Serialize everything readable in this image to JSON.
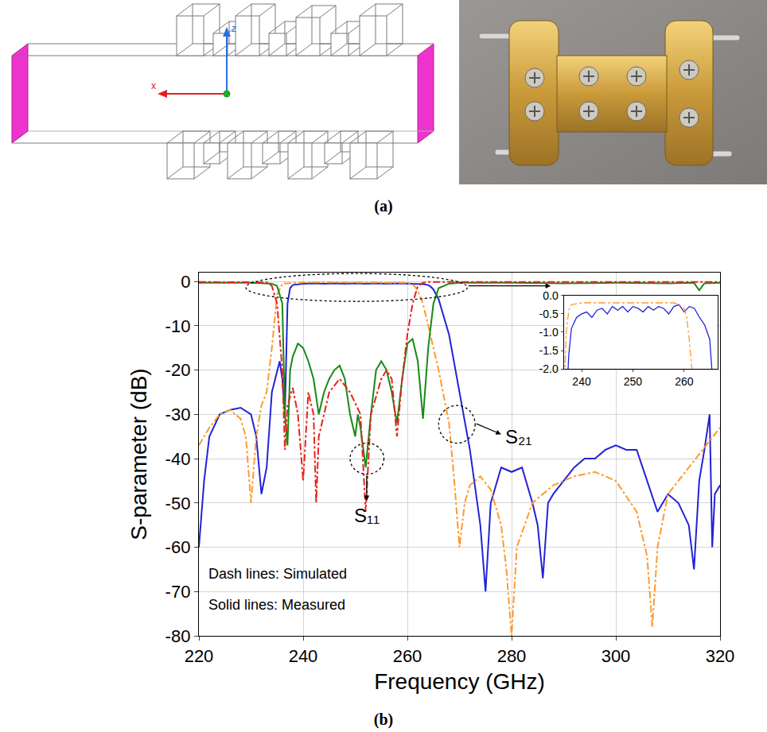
{
  "panels": {
    "a": {
      "label": "(a)",
      "axis_labels": [
        "x",
        "z"
      ]
    },
    "b": {
      "label": "(b)"
    }
  },
  "chart_data": {
    "type": "line",
    "x_label": "Frequency (GHz)",
    "y_label": "S-parameter (dB)",
    "xlim": [
      220,
      320
    ],
    "ylim": [
      -80,
      2
    ],
    "xticks": [
      220,
      240,
      260,
      280,
      300,
      320
    ],
    "yticks": [
      0,
      -10,
      -20,
      -30,
      -40,
      -50,
      -60,
      -70,
      -80
    ],
    "grid": true,
    "annotations": [
      "S₂₁",
      "S₁₁",
      "Dash lines: Simulated",
      "Solid lines: Measured"
    ],
    "series": [
      {
        "color": "#2323d8",
        "line_style": "solid",
        "x": [
          220,
          221,
          222,
          224,
          226,
          228,
          230,
          231,
          232,
          233,
          234,
          235,
          235.5,
          236,
          236.5,
          237,
          237.5,
          238,
          240,
          242,
          244,
          246,
          248,
          250,
          252,
          254,
          256,
          258,
          260,
          262,
          263,
          264,
          264.5,
          265,
          266,
          268,
          270,
          272,
          274,
          275,
          276,
          278,
          280,
          282,
          284,
          285,
          286,
          287,
          288,
          290,
          292,
          294,
          296,
          298,
          300,
          302,
          304,
          306,
          308,
          310,
          312,
          314,
          315,
          316,
          317,
          318,
          318.5,
          319,
          320
        ],
        "values": [
          -60,
          -45,
          -35,
          -30,
          -29,
          -28.5,
          -30,
          -35,
          -48,
          -42,
          -25,
          -20,
          -18,
          -22,
          -30,
          -5,
          -1.5,
          -0.8,
          -0.5,
          -0.4,
          -0.5,
          -0.4,
          -0.5,
          -0.4,
          -0.5,
          -0.4,
          -0.5,
          -0.4,
          -0.5,
          -0.5,
          -0.6,
          -0.8,
          -1.2,
          -1.8,
          -4,
          -12,
          -25,
          -38,
          -55,
          -70,
          -50,
          -42,
          -43,
          -42,
          -50,
          -55,
          -67,
          -50,
          -48,
          -45,
          -42,
          -40,
          -40,
          -38,
          -37,
          -38,
          -38,
          -45,
          -52,
          -48,
          -50,
          -55,
          -65,
          -45,
          -38,
          -30,
          -60,
          -48,
          -46
        ]
      },
      {
        "color": "#ff9a2e",
        "line_style": "dashdot",
        "x": [
          220,
          222,
          224,
          226,
          228,
          229,
          230,
          231,
          232,
          233,
          234,
          235,
          236,
          240,
          245,
          250,
          255,
          260,
          261,
          262,
          263,
          264,
          266,
          268,
          269,
          270,
          271,
          272,
          274,
          276,
          278,
          279,
          280,
          281,
          284,
          288,
          292,
          296,
          300,
          304,
          306,
          307,
          308,
          310,
          314,
          318,
          320
        ],
        "values": [
          -37,
          -33,
          -30,
          -29,
          -31,
          -35,
          -50,
          -35,
          -28,
          -25,
          -15,
          -3,
          -0.5,
          -0.2,
          -0.2,
          -0.2,
          -0.2,
          -0.3,
          -0.6,
          -2,
          -5,
          -10,
          -20,
          -32,
          -45,
          -60,
          -50,
          -46,
          -44,
          -47,
          -55,
          -65,
          -80,
          -60,
          -50,
          -46,
          -44,
          -43,
          -45,
          -52,
          -62,
          -78,
          -60,
          -48,
          -42,
          -36,
          -33
        ]
      },
      {
        "color": "#168a16",
        "line_style": "solid",
        "x": [
          220,
          225,
          230,
          234,
          235,
          236,
          236.5,
          237,
          237.5,
          238,
          239,
          240,
          241,
          242,
          243,
          244,
          245,
          246,
          247,
          248,
          249,
          250,
          250.5,
          251,
          252,
          253,
          254,
          255,
          256,
          257,
          258,
          259,
          260,
          261,
          262,
          263,
          264,
          265,
          266,
          268,
          270,
          280,
          290,
          300,
          310,
          315,
          316,
          317,
          320
        ],
        "values": [
          -0.3,
          -0.3,
          -0.3,
          -0.5,
          -1,
          -5,
          -30,
          -37,
          -20,
          -17,
          -14,
          -15,
          -18,
          -22,
          -30,
          -25,
          -22,
          -20,
          -19,
          -22,
          -30,
          -35,
          -30,
          -33,
          -42,
          -30,
          -20,
          -18,
          -20,
          -25,
          -32,
          -22,
          -14,
          -13,
          -18,
          -31,
          -15,
          -5,
          -1.5,
          -0.5,
          -0.3,
          -0.3,
          -0.4,
          -0.3,
          -0.4,
          -0.3,
          -2,
          -0.4,
          -0.3
        ]
      },
      {
        "color": "#e8221a",
        "line_style": "dashdot",
        "x": [
          220,
          230,
          233,
          234,
          235,
          236,
          236.5,
          237,
          238,
          239,
          240,
          241,
          242,
          242.5,
          243,
          245,
          247,
          249,
          251,
          252,
          253,
          255,
          256,
          257,
          258,
          259,
          260,
          261,
          262,
          263,
          264,
          280,
          300,
          320
        ],
        "values": [
          -0.1,
          -0.1,
          -0.2,
          -1,
          -5,
          -20,
          -38,
          -28,
          -24,
          -30,
          -45,
          -25,
          -30,
          -50,
          -35,
          -25,
          -22,
          -25,
          -30,
          -52,
          -30,
          -22,
          -20,
          -22,
          -35,
          -22,
          -12,
          -5,
          -1,
          -0.3,
          -0.1,
          -0.1,
          -0.1,
          -0.1
        ]
      }
    ],
    "inset": {
      "xlim": [
        236.5,
        266.5
      ],
      "ylim": [
        -2,
        0
      ],
      "xticks": [
        240,
        250,
        260
      ],
      "yticks": [
        {
          "value": 0,
          "label": "0.0"
        },
        -0.5,
        {
          "value": -1,
          "label": "-1.0"
        },
        -1.5,
        {
          "value": -2,
          "label": "-2.0"
        }
      ],
      "series": [
        {
          "color": "#2323d8",
          "line_style": "solid",
          "x": [
            237,
            237.5,
            238,
            239,
            240,
            241,
            242,
            243,
            244,
            245,
            246,
            247,
            248,
            249,
            250,
            251,
            252,
            253,
            254,
            255,
            256,
            257,
            258,
            259,
            260,
            261,
            262,
            263,
            264,
            265,
            265.5
          ],
          "values": [
            -3,
            -1.6,
            -0.9,
            -0.6,
            -0.5,
            -0.45,
            -0.6,
            -0.4,
            -0.35,
            -0.5,
            -0.3,
            -0.4,
            -0.3,
            -0.45,
            -0.3,
            -0.35,
            -0.45,
            -0.3,
            -0.4,
            -0.3,
            -0.35,
            -0.5,
            -0.3,
            -0.25,
            -0.45,
            -0.3,
            -0.35,
            -0.6,
            -0.8,
            -1.2,
            -2.2
          ]
        },
        {
          "color": "#ff9a2e",
          "line_style": "dashdot",
          "x": [
            236.5,
            237,
            237.5,
            238,
            240,
            245,
            250,
            255,
            258,
            259,
            260,
            260.5,
            261,
            261.5,
            262
          ],
          "values": [
            -3,
            -1,
            -0.4,
            -0.25,
            -0.2,
            -0.2,
            -0.2,
            -0.2,
            -0.2,
            -0.25,
            -0.35,
            -0.6,
            -1.2,
            -2,
            -3
          ]
        }
      ]
    }
  }
}
